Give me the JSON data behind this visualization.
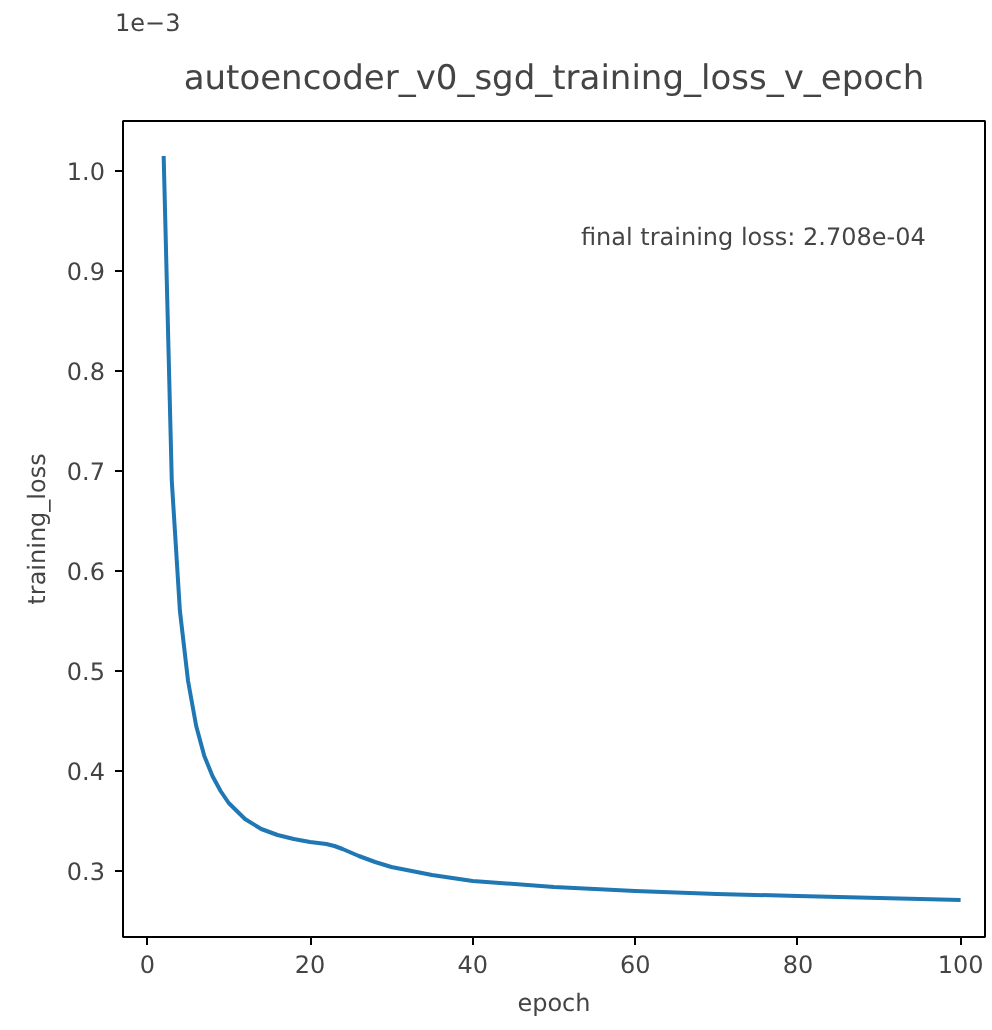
{
  "chart_data": {
    "type": "line",
    "title": "autoencoder_v0_sgd_training_loss_v_epoch",
    "xlabel": "epoch",
    "ylabel": "training_loss",
    "annotations": [
      "1e−3",
      "final training loss: 2.708e-04"
    ],
    "x": [
      2,
      3,
      4,
      5,
      6,
      7,
      8,
      9,
      10,
      12,
      14,
      16,
      18,
      20,
      22,
      23,
      24,
      26,
      28,
      30,
      35,
      40,
      50,
      60,
      70,
      80,
      90,
      100
    ],
    "series": [
      {
        "color": "#1f77b4",
        "values": [
          1.015,
          0.69,
          0.56,
          0.49,
          0.445,
          0.415,
          0.395,
          0.38,
          0.368,
          0.352,
          0.342,
          0.336,
          0.332,
          0.329,
          0.327,
          0.325,
          0.322,
          0.315,
          0.309,
          0.304,
          0.296,
          0.29,
          0.284,
          0.28,
          0.277,
          0.275,
          0.273,
          0.271
        ]
      }
    ],
    "xlim": [
      -3,
      103
    ],
    "ylim": [
      0.234,
      1.05
    ],
    "xticks": [
      0,
      20,
      40,
      60,
      80,
      100
    ],
    "yticks": [
      0.3,
      0.4,
      0.5,
      0.6,
      0.7,
      0.8,
      0.9,
      {
        "value": 1.0,
        "label": "1.0"
      }
    ],
    "grid": false,
    "marker": "none",
    "line_style": "solid"
  }
}
